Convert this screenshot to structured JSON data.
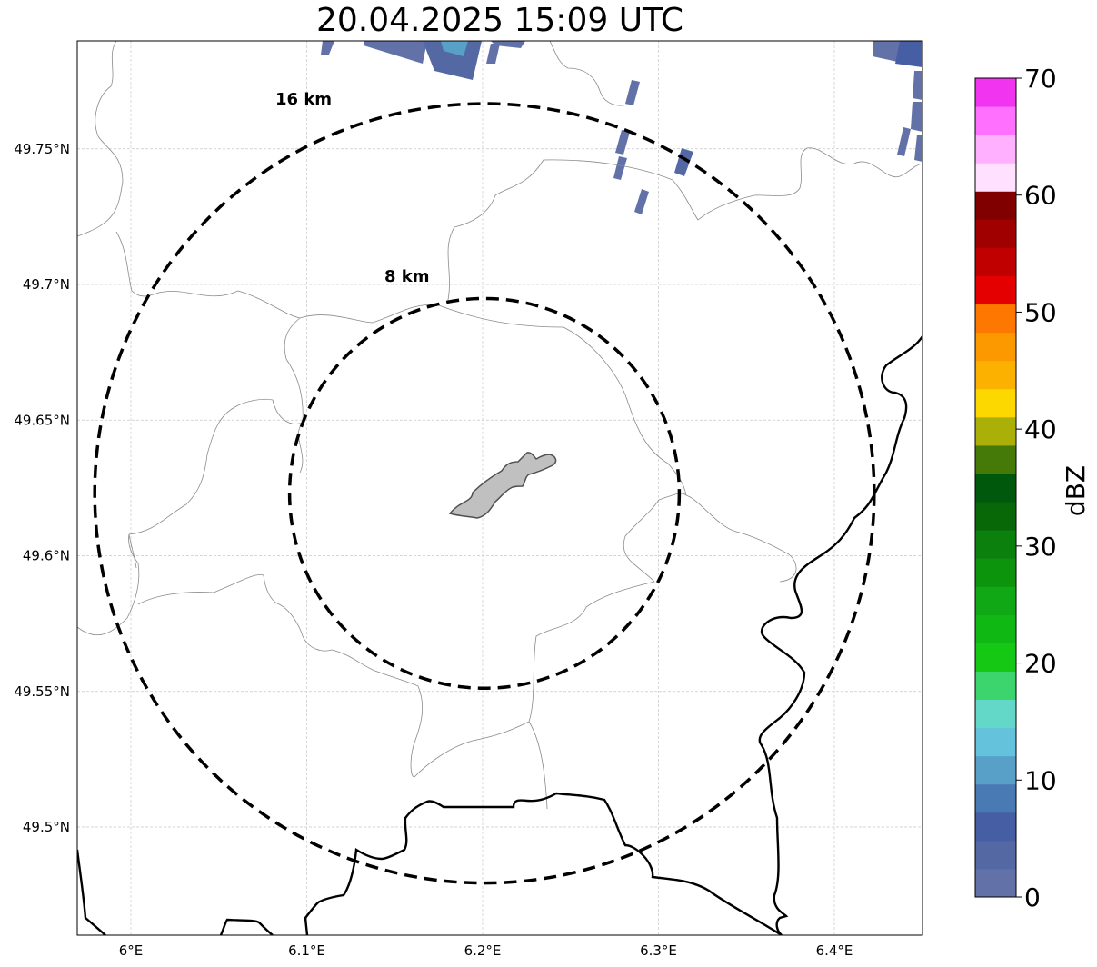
{
  "title": "20.04.2025 15:09 UTC",
  "map": {
    "lon_ticks": [
      {
        "value": 6.0,
        "label": "6°E"
      },
      {
        "value": 6.1,
        "label": "6.1°E"
      },
      {
        "value": 6.2,
        "label": "6.2°E"
      },
      {
        "value": 6.3,
        "label": "6.3°E"
      },
      {
        "value": 6.4,
        "label": "6.4°E"
      }
    ],
    "lat_ticks": [
      {
        "value": 49.75,
        "label": "49.75°N"
      },
      {
        "value": 49.7,
        "label": "49.7°N"
      },
      {
        "value": 49.65,
        "label": "49.65°N"
      },
      {
        "value": 49.6,
        "label": "49.6°N"
      },
      {
        "value": 49.55,
        "label": "49.55°N"
      },
      {
        "value": 49.5,
        "label": "49.5°N"
      }
    ],
    "gridlines": true,
    "range_rings": [
      {
        "radius_km": 16,
        "label": "16 km"
      },
      {
        "radius_km": 8,
        "label": "8 km"
      }
    ],
    "center": {
      "lon": 6.2,
      "lat": 49.623
    }
  },
  "colorbar": {
    "label": "dBZ",
    "min": 0,
    "max": 70,
    "ticks": [
      "0",
      "10",
      "20",
      "30",
      "40",
      "50",
      "60",
      "70"
    ],
    "colors": [
      "#6272a8",
      "#5468a4",
      "#465ea4",
      "#4a7ab4",
      "#58a0c8",
      "#64c2dc",
      "#64d8c8",
      "#3cd46c",
      "#14c814",
      "#10b814",
      "#10a814",
      "#0c940c",
      "#0c800c",
      "#086808",
      "#00580c",
      "#467a08",
      "#aab008",
      "#fcd800",
      "#fcb000",
      "#fc9800",
      "#fc7800",
      "#e40000",
      "#c00000",
      "#a00000",
      "#800000",
      "#ffe0ff",
      "#ffb0ff",
      "#ff70ff",
      "#f034f0"
    ]
  }
}
